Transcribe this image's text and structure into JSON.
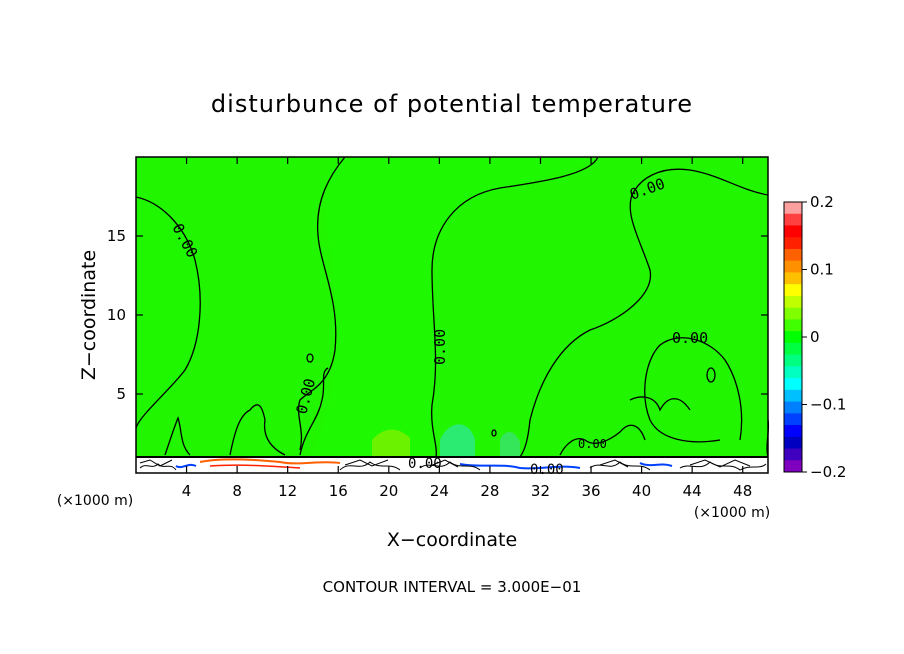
{
  "chart_data": {
    "type": "heatmap",
    "title": "disturbunce of potential temperature",
    "xlabel": "X−coordinate",
    "ylabel": "Z−coordinate",
    "x_unit": "(×1000 m)",
    "x_unit_right": "(×1000 m)",
    "xlim": [
      0,
      50
    ],
    "ylim": [
      0,
      20
    ],
    "x_ticks": [
      4,
      8,
      12,
      16,
      20,
      24,
      28,
      32,
      36,
      40,
      44,
      48
    ],
    "y_ticks": [
      5,
      10,
      15
    ],
    "footer": "CONTOUR INTERVAL = 3.000E−01",
    "contour_labels": [
      "0.00",
      "0.00",
      "0.00",
      "0.00",
      "0.00",
      "0.00",
      "0.00",
      "0.00"
    ],
    "colorbar": {
      "range": [
        -0.2,
        0.2
      ],
      "tick_labels": [
        "0.2",
        "0.1",
        "0",
        "−0.1",
        "−0.2"
      ],
      "tick_values": [
        0.2,
        0.1,
        0,
        -0.1,
        -0.2
      ],
      "colors": [
        "#ffa0a0",
        "#ff4040",
        "#ff0000",
        "#ff2000",
        "#ff6000",
        "#ff9000",
        "#ffc000",
        "#ffff00",
        "#c0ff00",
        "#80ff00",
        "#40ff00",
        "#00ff00",
        "#00ff40",
        "#00ff80",
        "#00ffc0",
        "#00ffff",
        "#00c0ff",
        "#0080ff",
        "#0040ff",
        "#0000ff",
        "#0000c0",
        "#4000c0",
        "#8000c0"
      ]
    },
    "background_color": "#21f500"
  }
}
